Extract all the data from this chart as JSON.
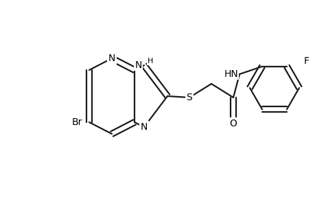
{
  "background_color": "#ffffff",
  "line_color": "#1a1a1a",
  "line_width": 1.6,
  "figsize": [
    4.6,
    3.0
  ],
  "dpi": 100,
  "xlim": [
    0,
    460
  ],
  "ylim": [
    0,
    300
  ]
}
